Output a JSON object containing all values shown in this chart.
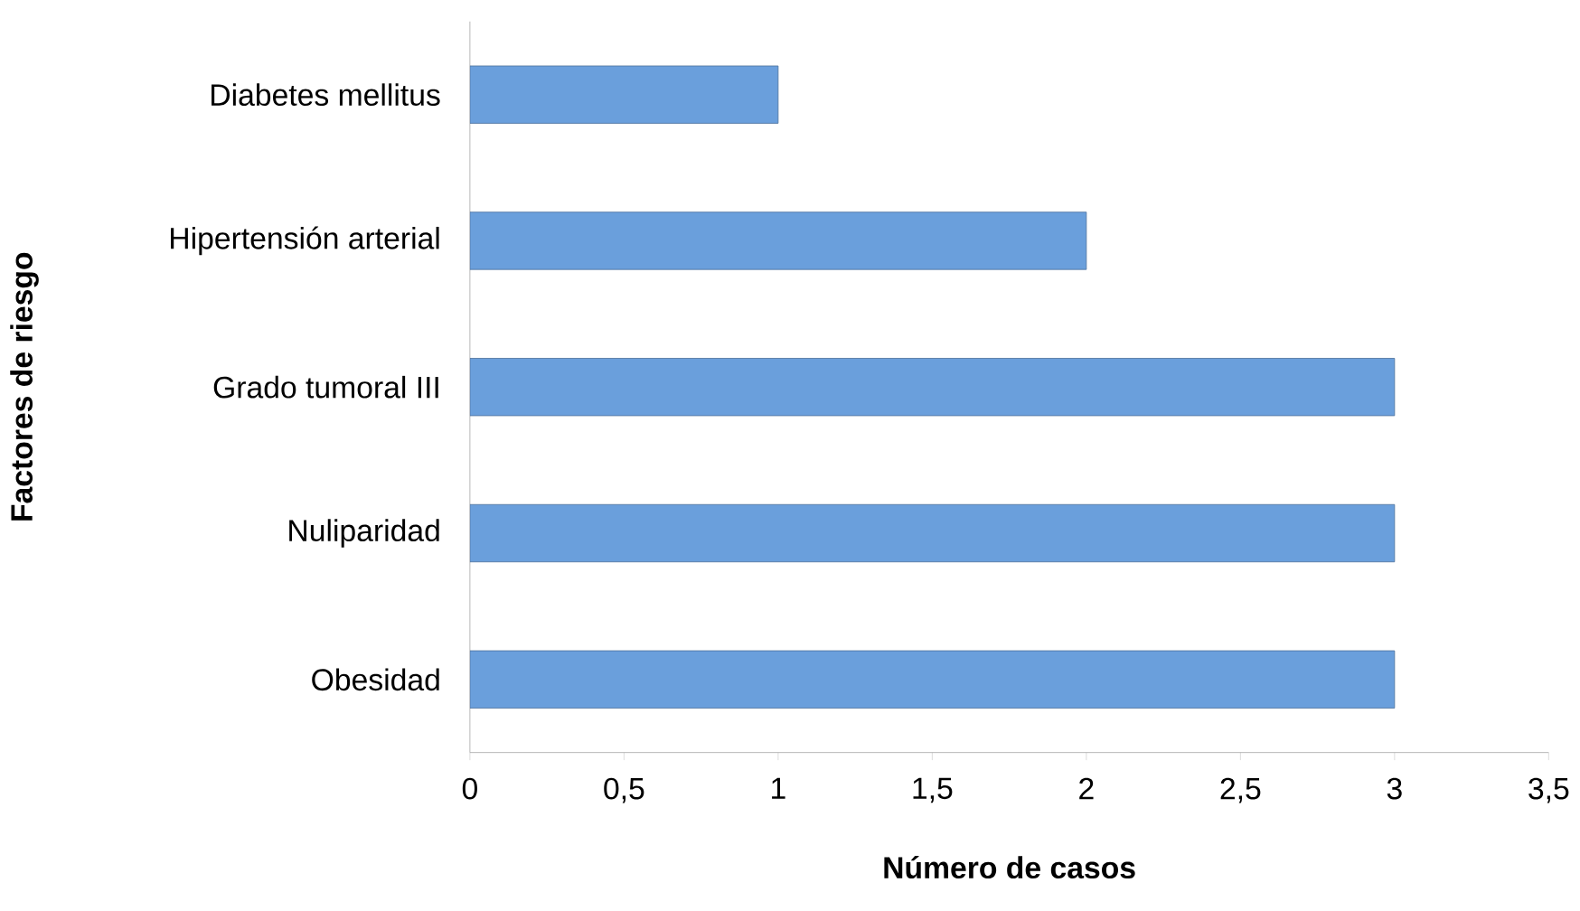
{
  "chart_data": {
    "type": "bar",
    "orientation": "horizontal",
    "xlabel": "Número de casos",
    "ylabel": "Factores de riesgo",
    "categories": [
      "Diabetes mellitus",
      "Hipertensión arterial",
      "Grado tumoral III",
      "Nuliparidad",
      "Obesidad"
    ],
    "values": [
      1,
      2,
      3,
      3,
      3
    ],
    "color": "#6a9fdc",
    "xlim": [
      0,
      3.5
    ],
    "xticks": [
      0,
      {
        "value": 0.5,
        "label": "0,5"
      },
      1,
      {
        "value": 1.5,
        "label": "1,5"
      },
      2,
      {
        "value": 2.5,
        "label": "2,5"
      },
      3,
      {
        "value": 3.5,
        "label": "3,5"
      }
    ],
    "grid": false
  }
}
